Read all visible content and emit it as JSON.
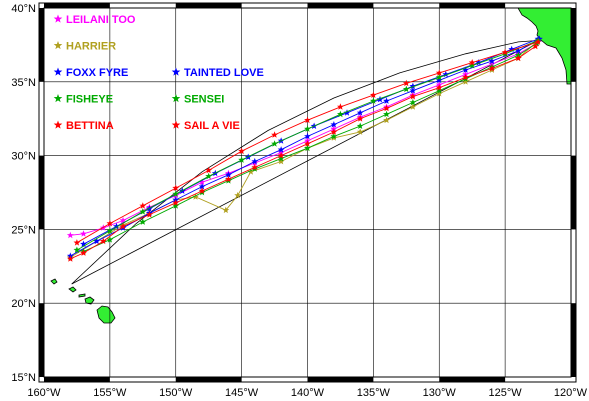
{
  "map": {
    "lon_range": [
      -160,
      -120
    ],
    "lat_range": [
      15,
      40
    ],
    "grid": true,
    "lon_ticks": [
      {
        "value": -160,
        "label": "160°W"
      },
      {
        "value": -155,
        "label": "155°W"
      },
      {
        "value": -150,
        "label": "150°W"
      },
      {
        "value": -145,
        "label": "145°W"
      },
      {
        "value": -140,
        "label": "140°W"
      },
      {
        "value": -135,
        "label": "135°W"
      },
      {
        "value": -130,
        "label": "130°W"
      },
      {
        "value": -125,
        "label": "125°W"
      },
      {
        "value": -120,
        "label": "120°W"
      }
    ],
    "lat_ticks": [
      {
        "value": 15,
        "label": "15°N"
      },
      {
        "value": 20,
        "label": "20°N"
      },
      {
        "value": 25,
        "label": "25°N"
      },
      {
        "value": 30,
        "label": "30°N"
      },
      {
        "value": 35,
        "label": "35°N"
      },
      {
        "value": 40,
        "label": "40°N"
      }
    ],
    "land_color": "#33ee33",
    "coastline_color": "#000000",
    "great_circle_color": "#000000",
    "legend_placement": "top-left",
    "great_circle": [
      [
        -157.9,
        21.3
      ],
      [
        -153,
        25.4
      ],
      [
        -148,
        28.9
      ],
      [
        -143,
        31.7
      ],
      [
        -138,
        33.9
      ],
      [
        -133,
        35.6
      ],
      [
        -128,
        36.9
      ],
      [
        -124,
        37.7
      ],
      [
        -122.5,
        37.8
      ]
    ],
    "rhumb_line": [
      [
        -157.9,
        21.3
      ],
      [
        -122.5,
        37.8
      ]
    ],
    "tracks": [
      {
        "name": "LEILANI TOO",
        "color": "#ff00ff",
        "legend_row": 0,
        "legend_col": 0,
        "points": [
          [
            -122.6,
            37.6
          ],
          [
            -124,
            36.9
          ],
          [
            -126,
            36.2
          ],
          [
            -128,
            35.5
          ],
          [
            -130,
            34.8
          ],
          [
            -132,
            34.1
          ],
          [
            -134,
            33.3
          ],
          [
            -136,
            32.6
          ],
          [
            -138,
            31.8
          ],
          [
            -140,
            31.0
          ],
          [
            -142,
            30.2
          ],
          [
            -144,
            29.5
          ],
          [
            -146,
            28.8
          ],
          [
            -148,
            28.2
          ],
          [
            -150,
            27.3
          ],
          [
            -152,
            26.5
          ],
          [
            -154,
            25.6
          ],
          [
            -155.5,
            25.1
          ],
          [
            -157,
            24.7
          ],
          [
            -158,
            24.6
          ]
        ]
      },
      {
        "name": "HARRIER",
        "color": "#b0a020",
        "legend_row": 1,
        "legend_col": 0,
        "points": [
          [
            -122.6,
            37.7
          ],
          [
            -124,
            36.6
          ],
          [
            -126,
            35.8
          ],
          [
            -128,
            35.0
          ],
          [
            -130,
            34.2
          ],
          [
            -132,
            33.3
          ],
          [
            -134,
            32.4
          ],
          [
            -136,
            31.6
          ],
          [
            -138,
            31.2
          ],
          [
            -140,
            30.5
          ],
          [
            -142,
            29.6
          ],
          [
            -144.3,
            28.9
          ],
          [
            -145.3,
            27.3
          ],
          [
            -146.2,
            26.3
          ],
          [
            -148.5,
            27.2
          ],
          [
            -150,
            27.0
          ],
          [
            -152,
            26.1
          ],
          [
            -154,
            25.3
          ],
          [
            -156,
            24.2
          ],
          [
            -158,
            23.1
          ]
        ]
      },
      {
        "name": "FOXX FYRE",
        "color": "#0000ff",
        "legend_row": 2,
        "legend_col": 0,
        "points": [
          [
            -122.4,
            37.9
          ],
          [
            -124,
            37.1
          ],
          [
            -126,
            36.4
          ],
          [
            -128,
            35.8
          ],
          [
            -130,
            35.1
          ],
          [
            -132,
            34.4
          ],
          [
            -134,
            33.7
          ],
          [
            -136,
            32.9
          ],
          [
            -138,
            32.1
          ],
          [
            -140,
            31.3
          ],
          [
            -142,
            30.4
          ],
          [
            -144,
            29.6
          ],
          [
            -146,
            28.7
          ],
          [
            -148,
            27.9
          ],
          [
            -150,
            27.0
          ],
          [
            -152,
            26.1
          ],
          [
            -154,
            25.1
          ],
          [
            -156,
            24.2
          ],
          [
            -158,
            23.2
          ]
        ]
      },
      {
        "name": "TAINTED LOVE",
        "color": "#0000ff",
        "legend_row": 2,
        "legend_col": 1,
        "points": [
          [
            -122.5,
            37.9
          ],
          [
            -124.5,
            37.2
          ],
          [
            -127,
            36.3
          ],
          [
            -129.5,
            35.5
          ],
          [
            -132,
            34.7
          ],
          [
            -134.5,
            33.8
          ],
          [
            -137,
            32.9
          ],
          [
            -139.5,
            32.0
          ],
          [
            -142,
            31.0
          ],
          [
            -144.5,
            29.9
          ],
          [
            -147,
            28.8
          ],
          [
            -149.5,
            27.6
          ],
          [
            -152,
            26.4
          ],
          [
            -154.5,
            25.2
          ],
          [
            -157,
            24.0
          ]
        ]
      },
      {
        "name": "FISHEYE",
        "color": "#00aa00",
        "legend_row": 3,
        "legend_col": 0,
        "points": [
          [
            -122.6,
            37.6
          ],
          [
            -124,
            36.8
          ],
          [
            -126,
            36.0
          ],
          [
            -128,
            35.2
          ],
          [
            -130,
            34.4
          ],
          [
            -132,
            33.6
          ],
          [
            -134,
            32.8
          ],
          [
            -136,
            32.0
          ],
          [
            -138,
            31.3
          ],
          [
            -140,
            30.5
          ],
          [
            -142,
            29.8
          ],
          [
            -144,
            29.1
          ],
          [
            -146,
            28.3
          ],
          [
            -148,
            27.5
          ],
          [
            -150,
            26.6
          ],
          [
            -152.5,
            25.5
          ],
          [
            -155,
            24.3
          ],
          [
            -157,
            23.5
          ]
        ]
      },
      {
        "name": "SENSEI",
        "color": "#00aa00",
        "legend_row": 3,
        "legend_col": 1,
        "points": [
          [
            -122.5,
            37.8
          ],
          [
            -125,
            36.9
          ],
          [
            -127.5,
            36.1
          ],
          [
            -130,
            35.3
          ],
          [
            -132.5,
            34.5
          ],
          [
            -135,
            33.7
          ],
          [
            -137.5,
            32.8
          ],
          [
            -140,
            31.8
          ],
          [
            -142.5,
            30.8
          ],
          [
            -145,
            29.7
          ],
          [
            -147.5,
            28.6
          ],
          [
            -150,
            27.4
          ],
          [
            -152.5,
            26.2
          ],
          [
            -155,
            24.9
          ],
          [
            -157.5,
            23.6
          ]
        ]
      },
      {
        "name": "BETTINA",
        "color": "#ff0000",
        "legend_row": 4,
        "legend_col": 0,
        "points": [
          [
            -122.7,
            37.4
          ],
          [
            -124,
            36.6
          ],
          [
            -126,
            35.9
          ],
          [
            -128,
            35.3
          ],
          [
            -130,
            34.6
          ],
          [
            -132,
            34.0
          ],
          [
            -134,
            33.2
          ],
          [
            -136,
            32.5
          ],
          [
            -138,
            31.6
          ],
          [
            -140,
            30.8
          ],
          [
            -142,
            30.0
          ],
          [
            -144,
            29.2
          ],
          [
            -146,
            28.4
          ],
          [
            -148,
            27.6
          ],
          [
            -150,
            26.8
          ],
          [
            -152,
            26.0
          ],
          [
            -154,
            25.2
          ],
          [
            -155.5,
            24.2
          ],
          [
            -157,
            23.4
          ],
          [
            -158,
            23.0
          ]
        ]
      },
      {
        "name": "SAIL A VIE",
        "color": "#ff0000",
        "legend_row": 4,
        "legend_col": 1,
        "points": [
          [
            -122.5,
            37.7
          ],
          [
            -125,
            37.0
          ],
          [
            -127.5,
            36.3
          ],
          [
            -130,
            35.6
          ],
          [
            -132.5,
            34.9
          ],
          [
            -135,
            34.1
          ],
          [
            -137.5,
            33.3
          ],
          [
            -140,
            32.4
          ],
          [
            -142.5,
            31.4
          ],
          [
            -145,
            30.3
          ],
          [
            -147.5,
            29.0
          ],
          [
            -150,
            27.8
          ],
          [
            -152.5,
            26.6
          ],
          [
            -155,
            25.4
          ],
          [
            -157.5,
            24.1
          ]
        ]
      }
    ]
  }
}
